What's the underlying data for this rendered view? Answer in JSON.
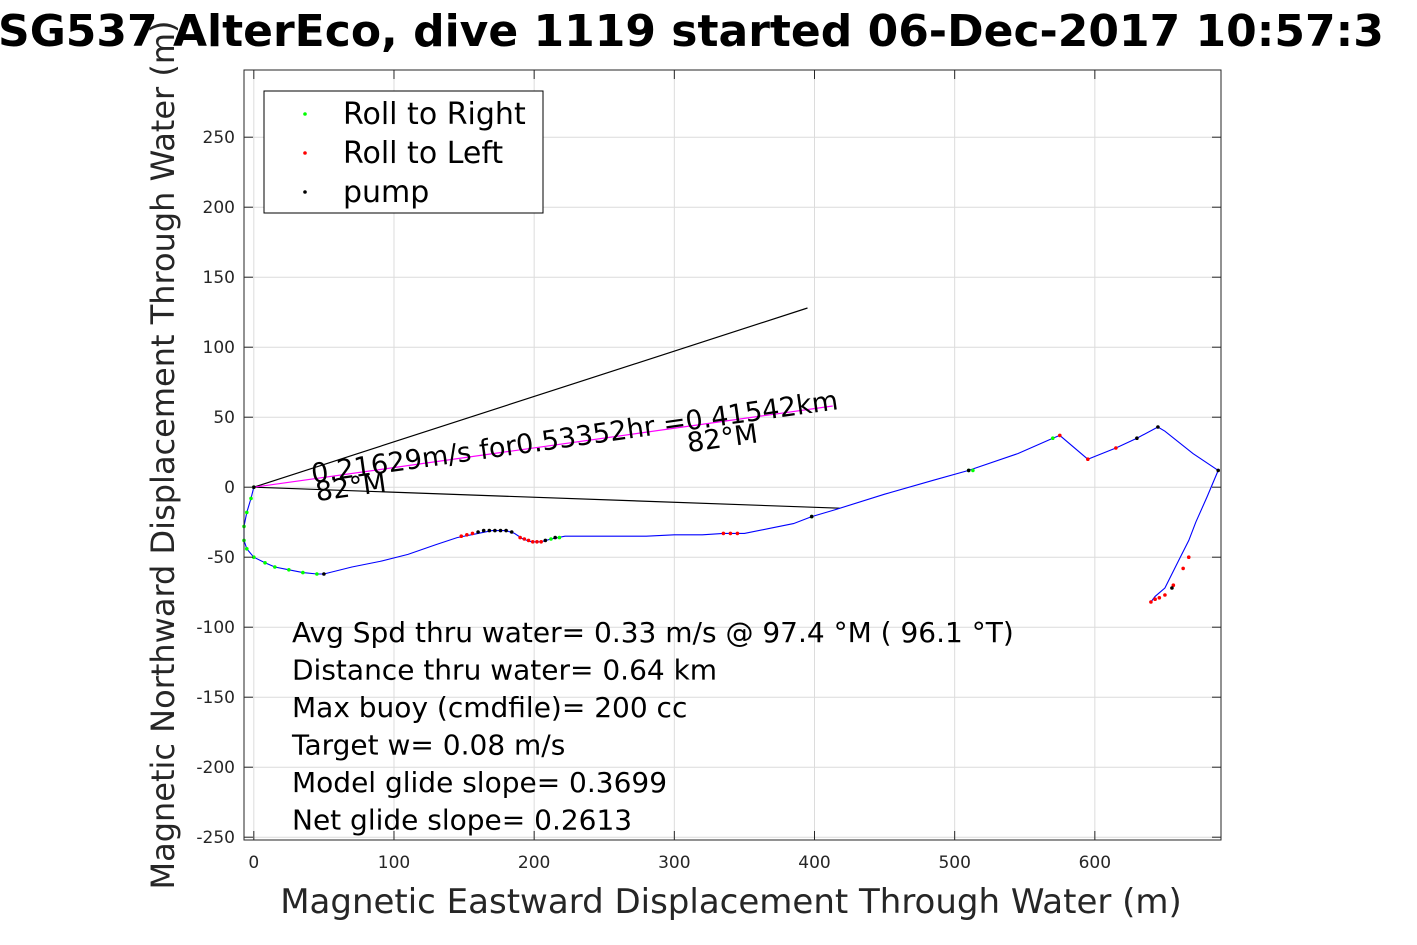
{
  "chart_data": {
    "type": "line",
    "title": "SG537 AlterEco, dive 1119 started 06-Dec-2017 10:57:3",
    "xlabel": "Magnetic Eastward Displacement Through Water (m)",
    "ylabel": "Magnetic Northward Displacement Through Water (m)",
    "xlim": [
      -7,
      690
    ],
    "ylim": [
      -252,
      298
    ],
    "xticks": [
      0,
      100,
      200,
      300,
      400,
      500,
      600
    ],
    "yticks": [
      -250,
      -200,
      -150,
      -100,
      -50,
      0,
      50,
      100,
      150,
      200,
      250
    ],
    "grid": true,
    "legend_location": "top-left",
    "legend": [
      {
        "label": "Roll to Right",
        "color": "#00ff00"
      },
      {
        "label": "Roll to Left",
        "color": "#ff0000"
      },
      {
        "label": "pump",
        "color": "#000000"
      }
    ],
    "track_color": "#0000ff",
    "track": [
      [
        0,
        0
      ],
      [
        -2,
        -8
      ],
      [
        -5,
        -18
      ],
      [
        -7,
        -28
      ],
      [
        -7,
        -38
      ],
      [
        -5,
        -44
      ],
      [
        0,
        -50
      ],
      [
        8,
        -54
      ],
      [
        15,
        -57
      ],
      [
        25,
        -59
      ],
      [
        35,
        -61
      ],
      [
        45,
        -62
      ],
      [
        50,
        -62
      ],
      [
        70,
        -57
      ],
      [
        90,
        -53
      ],
      [
        110,
        -48
      ],
      [
        130,
        -41
      ],
      [
        145,
        -36
      ],
      [
        160,
        -33
      ],
      [
        170,
        -31
      ],
      [
        180,
        -31
      ],
      [
        186,
        -33
      ],
      [
        192,
        -37
      ],
      [
        198,
        -39
      ],
      [
        205,
        -39
      ],
      [
        212,
        -37
      ],
      [
        222,
        -35
      ],
      [
        240,
        -35
      ],
      [
        260,
        -35
      ],
      [
        280,
        -35
      ],
      [
        300,
        -34
      ],
      [
        320,
        -34
      ],
      [
        335,
        -33
      ],
      [
        350,
        -33
      ],
      [
        370,
        -29
      ],
      [
        385,
        -26
      ],
      [
        398,
        -21
      ],
      [
        415,
        -16
      ],
      [
        450,
        -5
      ],
      [
        485,
        5
      ],
      [
        510,
        12
      ],
      [
        545,
        24
      ],
      [
        570,
        35
      ],
      [
        575,
        37
      ],
      [
        595,
        20
      ],
      [
        615,
        28
      ],
      [
        630,
        35
      ],
      [
        645,
        43
      ],
      [
        650,
        40
      ],
      [
        670,
        24
      ],
      [
        688,
        12
      ],
      [
        680,
        -7
      ],
      [
        672,
        -25
      ],
      [
        667,
        -38
      ],
      [
        660,
        -52
      ],
      [
        655,
        -62
      ],
      [
        650,
        -72
      ],
      [
        643,
        -78
      ],
      [
        640,
        -82
      ]
    ],
    "roll_right_points": [
      [
        0,
        0
      ],
      [
        -2,
        -8
      ],
      [
        -5,
        -18
      ],
      [
        -7,
        -28
      ],
      [
        -7,
        -38
      ],
      [
        -5,
        -44
      ],
      [
        0,
        -50
      ],
      [
        8,
        -54
      ],
      [
        15,
        -57
      ],
      [
        25,
        -59
      ],
      [
        35,
        -61
      ],
      [
        45,
        -62
      ],
      [
        212,
        -37
      ],
      [
        218,
        -36
      ],
      [
        398,
        -21
      ],
      [
        510,
        12
      ],
      [
        513,
        12
      ],
      [
        570,
        35
      ]
    ],
    "roll_left_points": [
      [
        148,
        -35
      ],
      [
        152,
        -34
      ],
      [
        156,
        -33
      ],
      [
        190,
        -36
      ],
      [
        193,
        -37
      ],
      [
        196,
        -38
      ],
      [
        199,
        -39
      ],
      [
        202,
        -39
      ],
      [
        205,
        -39
      ],
      [
        335,
        -33
      ],
      [
        340,
        -33
      ],
      [
        345,
        -33
      ],
      [
        575,
        37
      ],
      [
        595,
        20
      ],
      [
        615,
        28
      ],
      [
        640,
        -82
      ],
      [
        643,
        -80
      ],
      [
        646,
        -79
      ],
      [
        650,
        -77
      ],
      [
        656,
        -70
      ],
      [
        663,
        -58
      ],
      [
        667,
        -50
      ]
    ],
    "pump_points": [
      [
        0,
        0
      ],
      [
        50,
        -62
      ],
      [
        160,
        -32
      ],
      [
        164,
        -31
      ],
      [
        168,
        -31
      ],
      [
        172,
        -31
      ],
      [
        176,
        -31
      ],
      [
        180,
        -31
      ],
      [
        184,
        -32
      ],
      [
        208,
        -38
      ],
      [
        215,
        -36
      ],
      [
        398,
        -21
      ],
      [
        510,
        12
      ],
      [
        630,
        35
      ],
      [
        645,
        43
      ],
      [
        688,
        12
      ],
      [
        655,
        -72
      ]
    ],
    "heading_lines": [
      {
        "from": [
          0,
          0
        ],
        "to": [
          395,
          128
        ],
        "color": "#000000"
      },
      {
        "from": [
          0,
          0
        ],
        "to": [
          418,
          -15
        ],
        "color": "#000000"
      },
      {
        "from": [
          0,
          0
        ],
        "to": [
          413,
          58
        ],
        "color": "#ff00ff"
      }
    ],
    "annotations": [
      {
        "text": "0.21629m/s for0.53352hr =0.41542km",
        "x": 42,
        "y": 3,
        "rotation_deg": -8
      },
      {
        "text": "82°M",
        "x": 310,
        "y": 25,
        "rotation_deg": -8
      },
      {
        "text": "82°M",
        "x": 45,
        "y": -10,
        "rotation_deg": -8
      }
    ],
    "stats": [
      "Avg Spd thru water=  0.33 m/s @  97.4 °M ( 96.1 °T)",
      "Distance thru water=  0.64 km",
      "Max buoy (cmdfile)= 200 cc",
      "Target w= 0.08 m/s",
      "Model glide slope= 0.3699",
      "Net glide slope= 0.2613"
    ]
  }
}
